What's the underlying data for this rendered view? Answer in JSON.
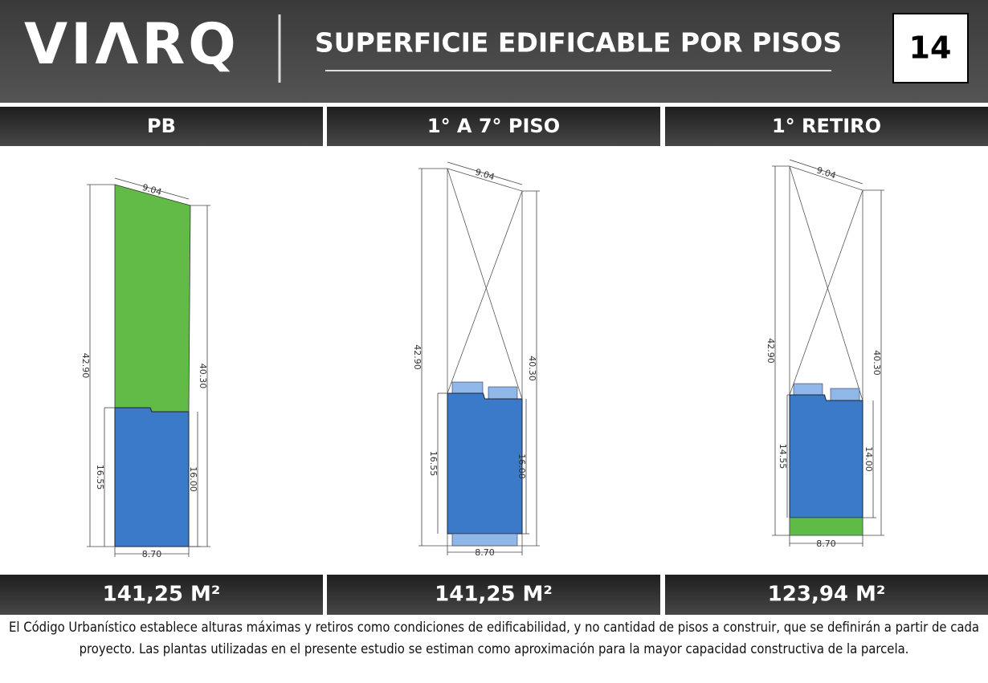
{
  "header": {
    "logo": "VIΛRQ",
    "title": "SUPERFICIE EDIFICABLE POR PISOS",
    "page_number": "14"
  },
  "panels": [
    {
      "title": "PB",
      "area": "141,25 M²",
      "dimensions": {
        "front": "9.04",
        "left_side": "42.90",
        "right_side": "40.30",
        "left_built": "16.55",
        "right_built": "16.00",
        "back": "8.70"
      }
    },
    {
      "title": "1° A 7° PISO",
      "area": "141,25 M²",
      "dimensions": {
        "front": "9.04",
        "left_side": "42.90",
        "right_side": "40.30",
        "left_built": "16.55",
        "right_built": "16.00",
        "back": "8.70"
      }
    },
    {
      "title": "1° RETIRO",
      "area": "123,94 M²",
      "dimensions": {
        "front": "9.04",
        "left_side": "42.90",
        "right_side": "40.30",
        "left_built": "14.55",
        "right_built": "14.00",
        "back": "8.70"
      }
    }
  ],
  "footer": {
    "note": "El Código Urbanístico establece alturas máximas y retiros como condiciones de edificabilidad, y no cantidad de pisos a construir, que se definirán a partir de cada proyecto. Las plantas utilizadas en el presente estudio se estiman como aproximación para la mayor capacidad constructiva de la parcela."
  }
}
